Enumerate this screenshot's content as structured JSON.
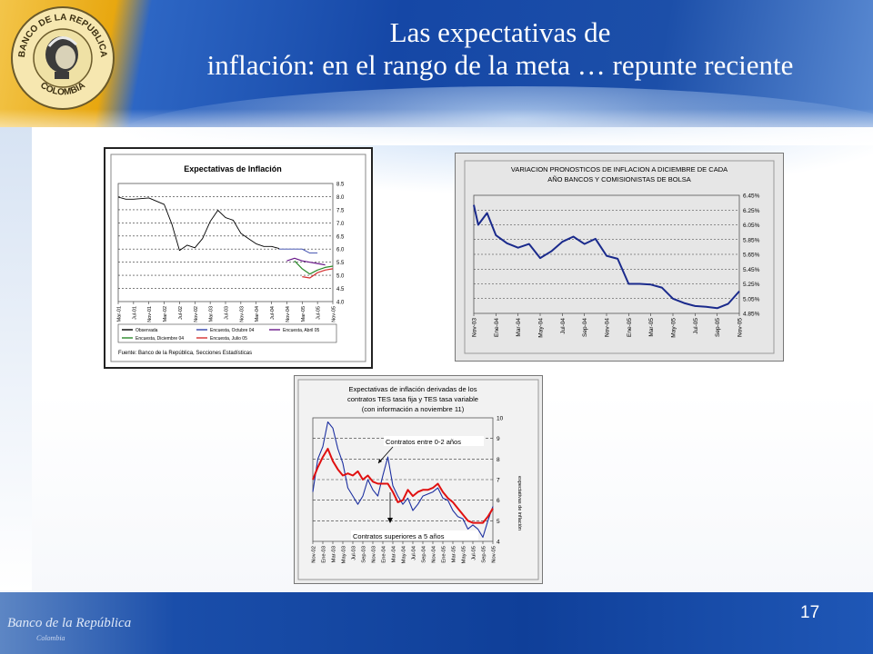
{
  "slide": {
    "title_line1": "Las expectativas de",
    "title_line2": "inflación: en el rango de la meta … repunte reciente",
    "page_number": "17",
    "seal_top_text": "BANCO DE LA REPUBLICA",
    "seal_bottom_text": "COLOMBIA",
    "footer_logo": "Banco de la República",
    "footer_logo_sub": "Colombia"
  },
  "chart_data": [
    {
      "type": "line",
      "title": "Expectativas de Inflación",
      "y_axis_side": "right",
      "ylim": [
        4.0,
        8.5
      ],
      "yticks": [
        "8.5",
        "8.0",
        "7.5",
        "7.0",
        "6.5",
        "6.0",
        "5.5",
        "5.0",
        "4.5",
        "4.0"
      ],
      "x_labels": [
        "Mar-01",
        "Jul-01",
        "Nov-01",
        "Mar-02",
        "Jul-02",
        "Nov-02",
        "Mar-03",
        "Jul-03",
        "Nov-03",
        "Mar-04",
        "Jul-04",
        "Nov-04",
        "Mar-05",
        "Jul-05",
        "Nov-05"
      ],
      "grid": true,
      "legend_position": "bottom",
      "legend": [
        "Observada",
        "Encuesta, Octubre 04",
        "Encuesta, Abril 05",
        "Encuesta, Diciembre 04",
        "Encuesta, Julio 05"
      ],
      "source": "Fuente: Banco de la República, Secciones Estadísticas",
      "series": [
        {
          "name": "Observada",
          "color": "#000000",
          "x": [
            0,
            0.5,
            1,
            2,
            3,
            3.5,
            4,
            4.5,
            5,
            5.5,
            6,
            6.5,
            7,
            7.5,
            8,
            8.5,
            9,
            9.5,
            10,
            10.5
          ],
          "y": [
            7.98,
            7.9,
            7.9,
            7.95,
            7.7,
            6.95,
            5.95,
            6.15,
            6.05,
            6.4,
            7.05,
            7.48,
            7.2,
            7.1,
            6.6,
            6.4,
            6.2,
            6.1,
            6.1,
            6.02
          ]
        },
        {
          "name": "Encuesta, Octubre 04",
          "color": "#3344aa",
          "x": [
            10.5,
            11,
            11.5,
            12,
            12.5,
            13
          ],
          "y": [
            6.0,
            6.0,
            6.0,
            6.0,
            5.85,
            5.85
          ]
        },
        {
          "name": "Encuesta, Diciembre 04",
          "color": "#6a1a8a",
          "x": [
            11,
            11.5,
            12,
            12.5,
            13,
            13.5
          ],
          "y": [
            5.55,
            5.65,
            5.55,
            5.5,
            5.45,
            5.4
          ]
        },
        {
          "name": "Encuesta, Abril 05",
          "color": "#2a8a2a",
          "x": [
            11.5,
            12,
            12.5,
            13,
            13.5,
            14
          ],
          "y": [
            5.55,
            5.25,
            5.05,
            5.2,
            5.3,
            5.35
          ]
        },
        {
          "name": "Encuesta, Julio 05",
          "color": "#d43030",
          "x": [
            12,
            12.5,
            13,
            13.5,
            14
          ],
          "y": [
            4.95,
            4.9,
            5.1,
            5.2,
            5.25
          ]
        }
      ]
    },
    {
      "type": "line",
      "title": "VARIACION PRONOSTICOS DE INFLACION A DICIEMBRE DE CADA AÑO BANCOS Y COMISIONISTAS DE BOLSA",
      "y_axis_side": "right",
      "ylim": [
        4.85,
        6.45
      ],
      "yticks": [
        "6.45%",
        "6.25%",
        "6.05%",
        "5.85%",
        "5.65%",
        "5.45%",
        "5.25%",
        "5.05%",
        "4.85%"
      ],
      "x_labels": [
        "Nov-03",
        "Ene-04",
        "Mar-04",
        "May-04",
        "Jul-04",
        "Sep-04",
        "Nov-04",
        "Ene-05",
        "Mar-05",
        "May-05",
        "Jul-05",
        "Sep-05",
        "Nov-05"
      ],
      "grid": true,
      "series": [
        {
          "name": "",
          "color": "#1a2a8c",
          "x": [
            0,
            0.2,
            0.6,
            1,
            1.5,
            2,
            2.5,
            3,
            3.5,
            4,
            4.5,
            5,
            5.5,
            6,
            6.5,
            7,
            7.5,
            8,
            8.5,
            9,
            9.5,
            10,
            10.5,
            11,
            11.5,
            12
          ],
          "y": [
            6.32,
            6.05,
            6.21,
            5.91,
            5.8,
            5.74,
            5.79,
            5.6,
            5.69,
            5.82,
            5.89,
            5.79,
            5.86,
            5.63,
            5.59,
            5.25,
            5.25,
            5.24,
            5.2,
            5.05,
            4.99,
            4.95,
            4.94,
            4.92,
            4.98,
            5.15
          ]
        }
      ]
    },
    {
      "type": "line",
      "title": "Expectativas de inflación derivadas de los contratos TES tasa fija y TES tasa variable (con información a noviembre 11)",
      "ylabel": "expectativas de inflación",
      "y_axis_side": "right",
      "ylim": [
        4,
        10
      ],
      "yticks": [
        "10",
        "9",
        "8",
        "7",
        "6",
        "5",
        "4"
      ],
      "x_labels": [
        "Nov-02",
        "Ene-03",
        "Mar-03",
        "May-03",
        "Jul-03",
        "Sep-03",
        "Nov-03",
        "Ene-04",
        "Mar-04",
        "May-04",
        "Jul-04",
        "Sep-04",
        "Nov-04",
        "Ene-05",
        "Mar-05",
        "May-05",
        "Jul-05",
        "Sep-05",
        "Nov-05"
      ],
      "annotations": [
        "Contratos entre 0-2 años",
        "Contratos superiores a 5 años"
      ],
      "grid": true,
      "series": [
        {
          "name": "",
          "color": "#1c2fa0",
          "x": [
            0,
            0.5,
            1,
            1.5,
            2,
            2.5,
            3,
            3.5,
            4,
            4.5,
            5,
            5.5,
            6,
            6.5,
            7,
            7.5,
            8,
            8.5,
            9,
            9.5,
            10,
            10.5,
            11,
            11.5,
            12,
            12.5,
            13,
            13.5,
            14,
            14.5,
            15,
            15.5,
            16,
            16.5,
            17,
            17.5,
            18
          ],
          "y": [
            6.4,
            8.0,
            8.6,
            9.8,
            9.5,
            8.5,
            7.8,
            6.6,
            6.2,
            5.8,
            6.2,
            7.0,
            6.5,
            6.2,
            7.2,
            8.1,
            6.7,
            6.2,
            5.8,
            6.1,
            5.5,
            5.8,
            6.2,
            6.3,
            6.4,
            6.6,
            6.1,
            6.0,
            5.5,
            5.2,
            5.1,
            4.6,
            4.8,
            4.6,
            4.2,
            5.0,
            5.7
          ]
        },
        {
          "name": "",
          "color": "#e01010",
          "x": [
            0,
            0.5,
            1,
            1.5,
            2,
            2.5,
            3,
            3.5,
            4,
            4.5,
            5,
            5.5,
            6,
            6.5,
            7,
            7.5,
            8,
            8.5,
            9,
            9.5,
            10,
            10.5,
            11,
            11.5,
            12,
            12.5,
            13,
            13.5,
            14,
            14.5,
            15,
            15.5,
            16,
            16.5,
            17,
            17.5,
            18
          ],
          "y": [
            7.0,
            7.6,
            8.1,
            8.5,
            7.9,
            7.5,
            7.2,
            7.3,
            7.2,
            7.4,
            7.0,
            7.2,
            6.9,
            6.8,
            6.8,
            6.8,
            6.4,
            5.9,
            6.0,
            6.5,
            6.2,
            6.4,
            6.5,
            6.5,
            6.6,
            6.8,
            6.4,
            6.1,
            5.9,
            5.6,
            5.3,
            5.0,
            4.9,
            4.9,
            4.9,
            5.2,
            5.6
          ]
        }
      ]
    }
  ]
}
